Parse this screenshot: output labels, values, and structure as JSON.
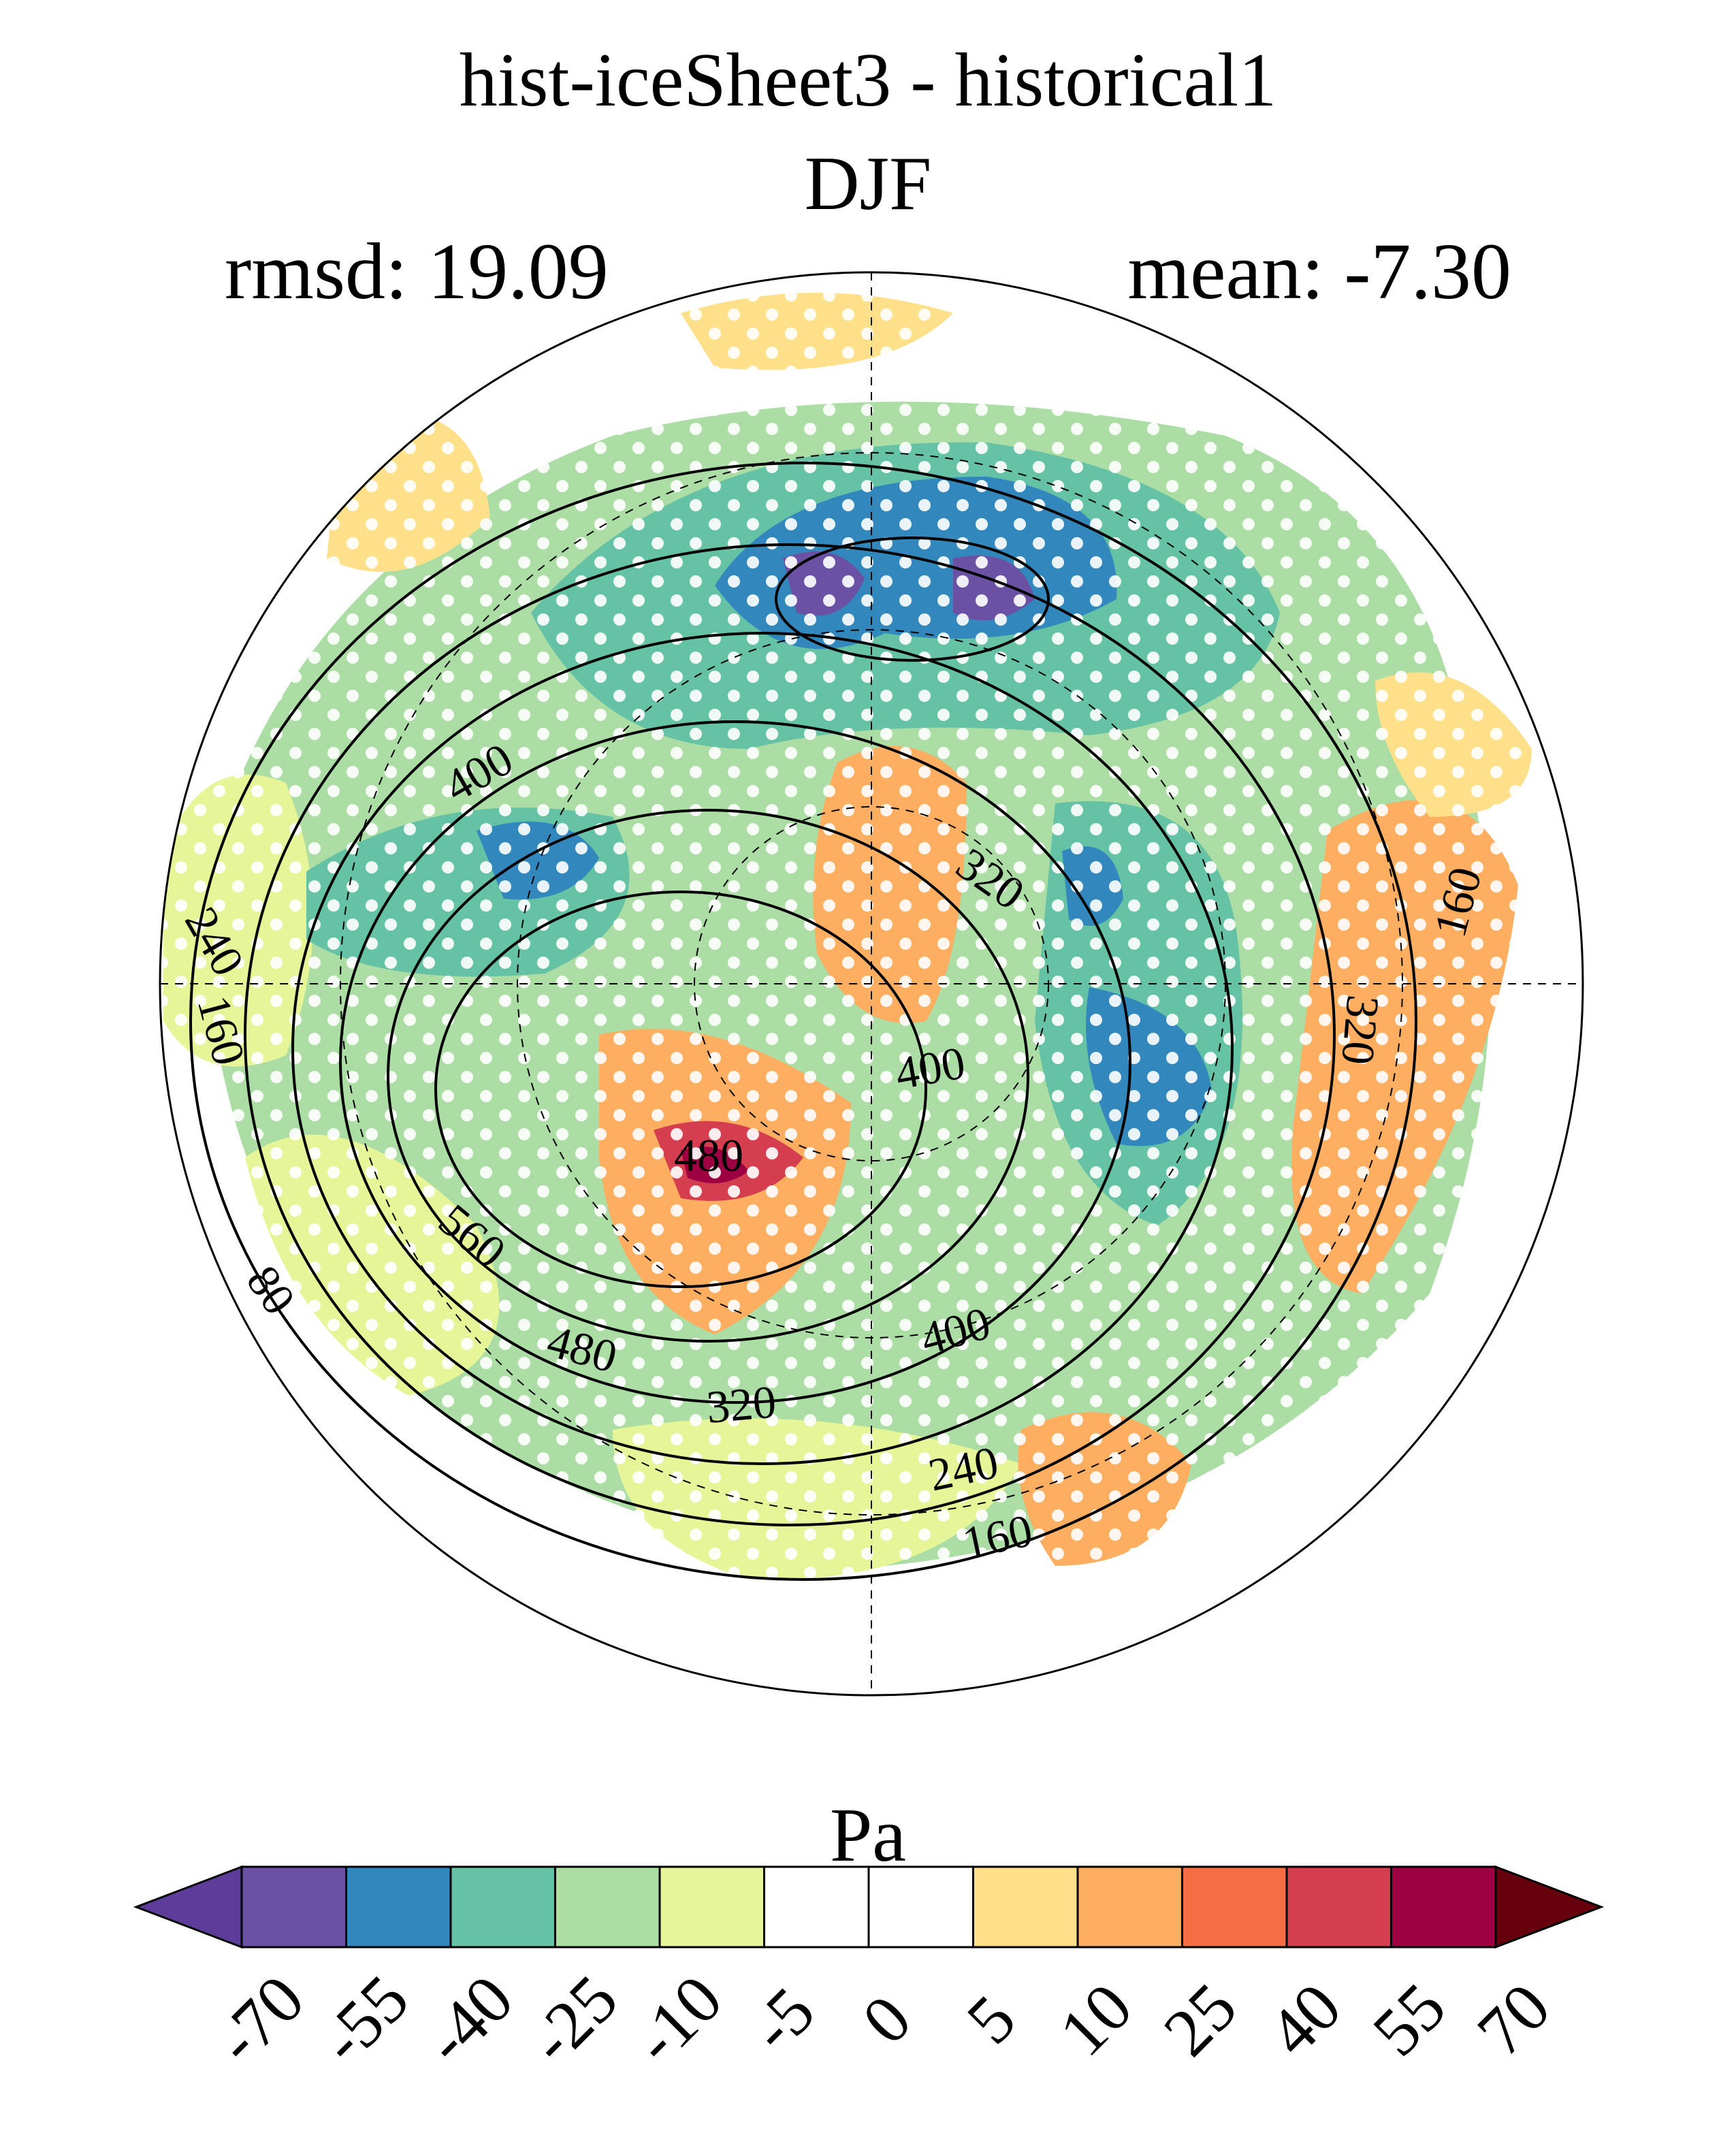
{
  "title": "hist-iceSheet3 - historical1",
  "season": "DJF",
  "stats": {
    "rmsd": "rmsd: 19.09",
    "mean": "mean: -7.30"
  },
  "units": "Pa",
  "map": {
    "projection": "north polar stereographic",
    "stippling": "white dots",
    "contour_labels": [
      "400",
      "240",
      "160",
      "80",
      "560",
      "480",
      "480",
      "400",
      "320",
      "240",
      "160",
      "320",
      "400",
      "320",
      "160"
    ]
  },
  "colorbar": {
    "levels": [
      "-70",
      "-55",
      "-40",
      "-25",
      "-10",
      "-5",
      "0",
      "5",
      "10",
      "25",
      "40",
      "55",
      "70"
    ],
    "colors": [
      "#5e3c99",
      "#6a51a3",
      "#3288bd",
      "#66c2a5",
      "#abdda4",
      "#e6f598",
      "#ffffff",
      "#ffffff",
      "#fee08b",
      "#fdae61",
      "#f46d43",
      "#d53e4f",
      "#9e0142",
      "#67000d"
    ]
  }
}
